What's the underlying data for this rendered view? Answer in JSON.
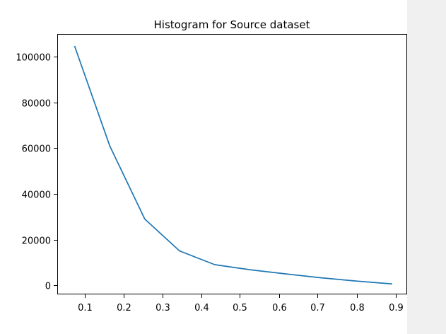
{
  "chart_data": {
    "type": "line",
    "title": "Histogram for Source dataset",
    "xlabel": "",
    "ylabel": "",
    "xlim": [
      0.03,
      0.93
    ],
    "ylim": [
      -4000,
      110000
    ],
    "grid": false,
    "x_ticks": [
      0.1,
      0.2,
      0.3,
      0.4,
      0.5,
      0.6,
      0.7,
      0.8,
      0.9
    ],
    "x_tick_labels": [
      "0.1",
      "0.2",
      "0.3",
      "0.4",
      "0.5",
      "0.6",
      "0.7",
      "0.8",
      "0.9"
    ],
    "y_ticks": [
      0,
      20000,
      40000,
      60000,
      80000,
      100000
    ],
    "y_tick_labels": [
      "0",
      "20000",
      "40000",
      "60000",
      "80000",
      "100000"
    ],
    "series": [
      {
        "color": "#1f77b4",
        "x": [
          0.075,
          0.165,
          0.255,
          0.345,
          0.435,
          0.525,
          0.615,
          0.705,
          0.795,
          0.89
        ],
        "y": [
          104500,
          61000,
          29000,
          15000,
          9000,
          6800,
          5000,
          3300,
          1900,
          600
        ]
      }
    ]
  }
}
